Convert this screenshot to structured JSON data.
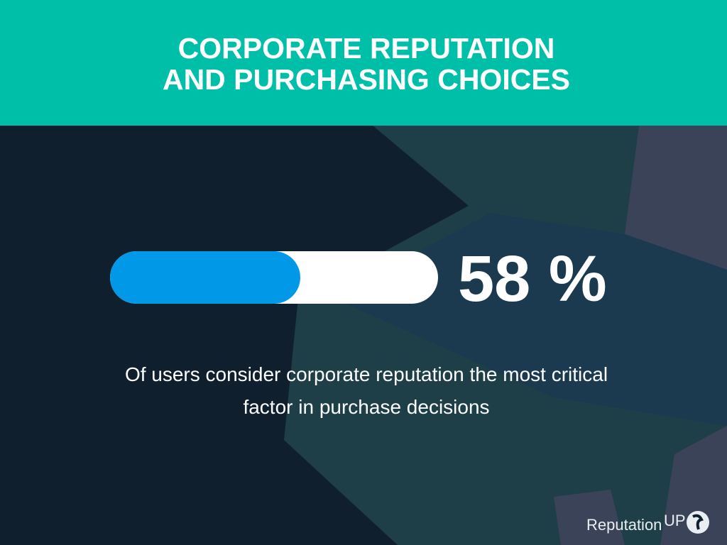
{
  "chart_data": {
    "type": "progress",
    "title_lines": [
      "CORPORATE REPUTATION",
      "AND PURCHASING CHOICES"
    ],
    "value": 58,
    "value_label": "58 %",
    "xlim": [
      0,
      100
    ],
    "color": "#0298e8",
    "track_color": "#ffffff",
    "description_lines": [
      "Of users consider corporate reputation the most critical",
      "factor in purchase decisions"
    ],
    "logo": {
      "text": "Reputation",
      "suffix": "UP"
    }
  }
}
